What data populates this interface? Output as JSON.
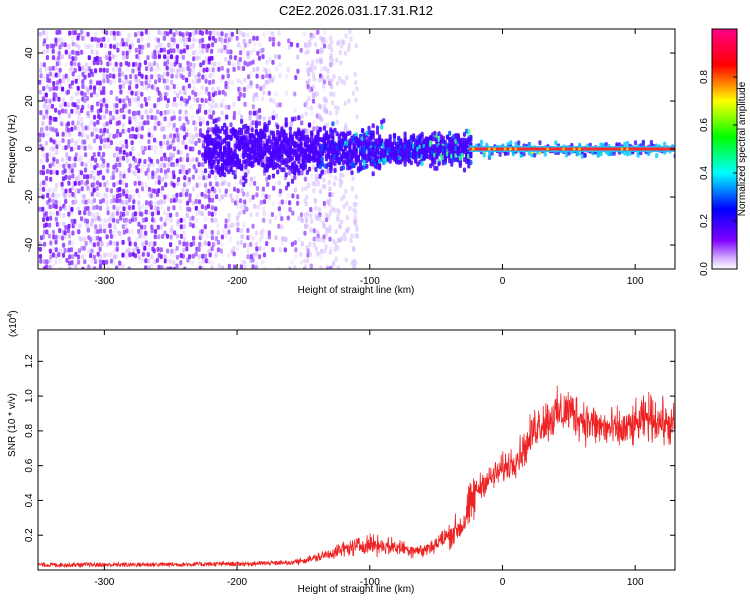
{
  "title": "C2E2.2026.031.17.31.R12",
  "colors": {
    "spectrum_line": "#ff2a2a",
    "snr_line": "#ee2222",
    "speckle": "#6a00ff",
    "background": "#ffffff"
  },
  "chart_data": [
    {
      "type": "heatmap",
      "name": "spectrogram",
      "xlabel": "Height of straight line (km)",
      "ylabel": "Frequency (Hz)",
      "xlim": [
        -350,
        130
      ],
      "ylim": [
        -50,
        50
      ],
      "xticks": [
        -300,
        -200,
        -100,
        0,
        100
      ],
      "xtick_labels": [
        "-300",
        "-200",
        "-100",
        "0",
        "100"
      ],
      "yticks": [
        -40,
        -20,
        0,
        20,
        40
      ],
      "ytick_labels": [
        "-40",
        "-20",
        "0",
        "20",
        "40"
      ],
      "signal_band_center_hz": 0,
      "notes": "Broadband noise speckle below about -150 km; energy concentrates near 0 Hz from about -220 km and becomes a narrow line above about -25 km."
    },
    {
      "type": "colorbar",
      "name": "colorbar",
      "label": "Normalized spectral amplitude",
      "range": [
        0,
        1
      ],
      "ticks": [
        0.0,
        0.2,
        0.4,
        0.6,
        0.8
      ],
      "tick_labels": [
        "0.0",
        "0.2",
        "0.4",
        "0.6",
        "0.8"
      ],
      "colormap": [
        "#ffffff",
        "#7f00ff",
        "#0000ff",
        "#00ffff",
        "#00ff00",
        "#ffff00",
        "#ff0000",
        "#ff00aa"
      ]
    },
    {
      "type": "line",
      "name": "snr",
      "xlabel": "Height of straight line (km)",
      "ylabel": "SNR (10 * v/v)",
      "y_scale_label": "(x10",
      "y_scale_exponent": "4",
      "xlim": [
        -350,
        130
      ],
      "ylim": [
        0,
        13800
      ],
      "xticks": [
        -300,
        -200,
        -100,
        0,
        100
      ],
      "xtick_labels": [
        "-300",
        "-200",
        "-100",
        "0",
        "100"
      ],
      "yticks": [
        2000,
        4000,
        6000,
        8000,
        10000,
        12000
      ],
      "ytick_labels": [
        "0.2",
        "0.4",
        "0.6",
        "0.8",
        "1.0",
        "1.2"
      ],
      "series": [
        {
          "name": "SNR",
          "x": [
            -350,
            -300,
            -250,
            -200,
            -160,
            -140,
            -120,
            -100,
            -80,
            -60,
            -50,
            -40,
            -30,
            -25,
            -20,
            -15,
            -10,
            -5,
            0,
            5,
            10,
            15,
            20,
            25,
            30,
            40,
            50,
            60,
            70,
            80,
            90,
            100,
            110,
            120,
            130
          ],
          "y": [
            300,
            300,
            320,
            350,
            420,
            700,
            1200,
            1500,
            1300,
            1100,
            1500,
            2000,
            2600,
            3500,
            4500,
            5000,
            5200,
            5500,
            5800,
            6100,
            6400,
            6800,
            7400,
            8300,
            8500,
            8900,
            9200,
            8700,
            8300,
            8100,
            8000,
            8300,
            8800,
            8500,
            8200
          ]
        }
      ]
    }
  ]
}
